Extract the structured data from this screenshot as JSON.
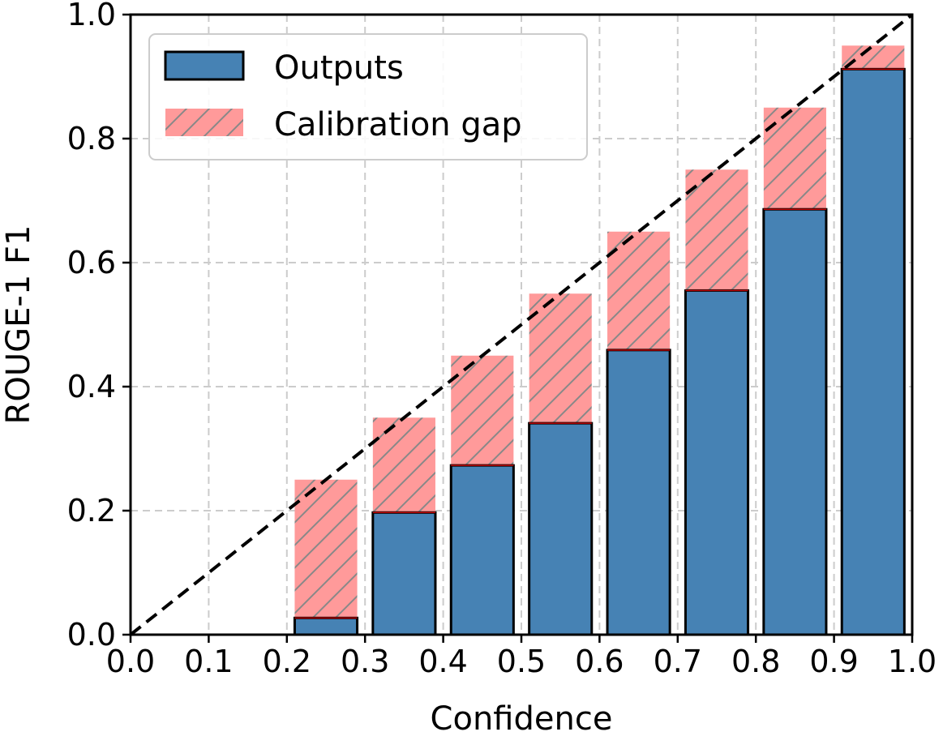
{
  "chart_data": {
    "type": "bar",
    "title": "",
    "xlabel": "Confidence",
    "ylabel": "ROUGE-1 F1",
    "xlim": [
      0.0,
      1.0
    ],
    "ylim": [
      0.0,
      1.0
    ],
    "grid": true,
    "xticks": [
      "0.0",
      "0.1",
      "0.2",
      "0.3",
      "0.4",
      "0.5",
      "0.6",
      "0.7",
      "0.8",
      "0.9",
      "1.0"
    ],
    "yticks": [
      "0.0",
      "0.2",
      "0.4",
      "0.6",
      "0.8",
      "1.0"
    ],
    "bin_centers": [
      0.25,
      0.35,
      0.45,
      0.55,
      0.65,
      0.75,
      0.85,
      0.95
    ],
    "bin_width": 0.08,
    "series": [
      {
        "name": "Outputs",
        "values": [
          0.027,
          0.197,
          0.273,
          0.341,
          0.459,
          0.555,
          0.686,
          0.912
        ]
      },
      {
        "name": "Calibration gap",
        "values": [
          0.25,
          0.35,
          0.45,
          0.55,
          0.65,
          0.75,
          0.85,
          0.95
        ]
      }
    ],
    "reference_line": "y = x (dashed)",
    "legend": [
      "Outputs",
      "Calibration gap"
    ],
    "legend_position": "upper-left",
    "colors": {
      "outputs": "#4682b4",
      "gap": "#ff9a9a",
      "hatch": "#888888",
      "gap_edge": "#c00000"
    }
  }
}
